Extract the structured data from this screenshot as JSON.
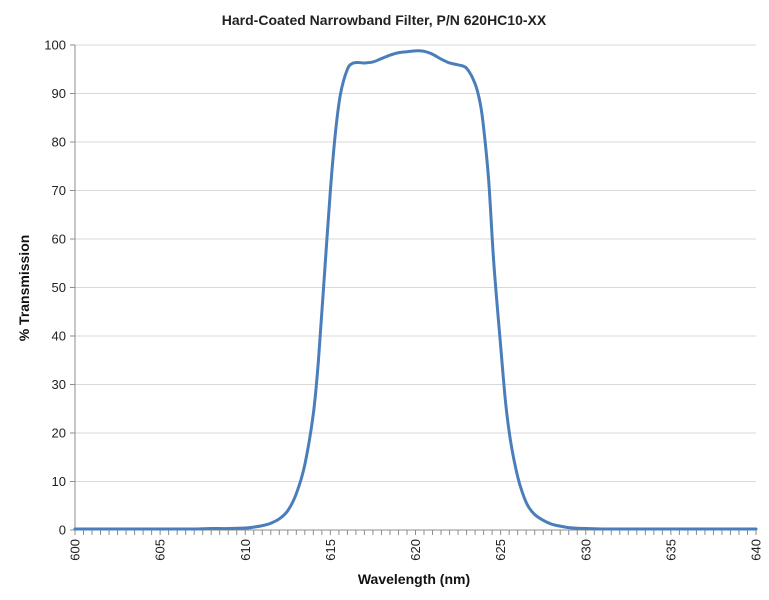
{
  "chart_data": {
    "type": "line",
    "title": "Hard-Coated Narrowband Filter, P/N 620HC10-XX",
    "xlabel": "Wavelength (nm)",
    "ylabel": "% Transmission",
    "xlim": [
      600,
      640
    ],
    "ylim": [
      0,
      100
    ],
    "x_ticks": [
      600,
      605,
      610,
      615,
      620,
      625,
      630,
      635,
      640
    ],
    "y_ticks": [
      0,
      10,
      20,
      30,
      40,
      50,
      60,
      70,
      80,
      90,
      100
    ],
    "grid": "horizontal",
    "legend": "none",
    "series_color": "#4a7ebb",
    "series": [
      {
        "x": [
          600,
          602,
          604,
          606,
          607,
          608,
          609,
          610,
          610.5,
          611,
          611.5,
          612,
          612.5,
          613,
          613.5,
          614,
          614.3,
          614.6,
          615,
          615.3,
          615.6,
          616,
          616.3,
          616.6,
          617,
          617.5,
          618,
          618.5,
          619,
          619.5,
          620,
          620.5,
          621,
          621.5,
          622,
          622.5,
          623,
          623.5,
          623.8,
          624,
          624.3,
          624.6,
          625,
          625.3,
          625.6,
          626,
          626.3,
          626.6,
          627,
          627.5,
          628,
          628.5,
          629,
          630,
          631,
          632,
          634,
          636,
          638,
          640
        ],
        "y": [
          0.2,
          0.2,
          0.2,
          0.2,
          0.2,
          0.3,
          0.3,
          0.4,
          0.6,
          0.9,
          1.4,
          2.3,
          4.0,
          7.5,
          13.5,
          24.0,
          35.0,
          50.0,
          70.0,
          82.0,
          90.0,
          95.0,
          96.2,
          96.4,
          96.3,
          96.5,
          97.2,
          97.9,
          98.4,
          98.6,
          98.8,
          98.7,
          98.1,
          97.1,
          96.3,
          95.9,
          95.2,
          92.0,
          88.0,
          83.0,
          72.0,
          55.0,
          38.0,
          26.0,
          18.0,
          11.0,
          7.5,
          5.0,
          3.2,
          2.0,
          1.2,
          0.8,
          0.5,
          0.3,
          0.2,
          0.2,
          0.2,
          0.2,
          0.2,
          0.2
        ]
      }
    ]
  }
}
